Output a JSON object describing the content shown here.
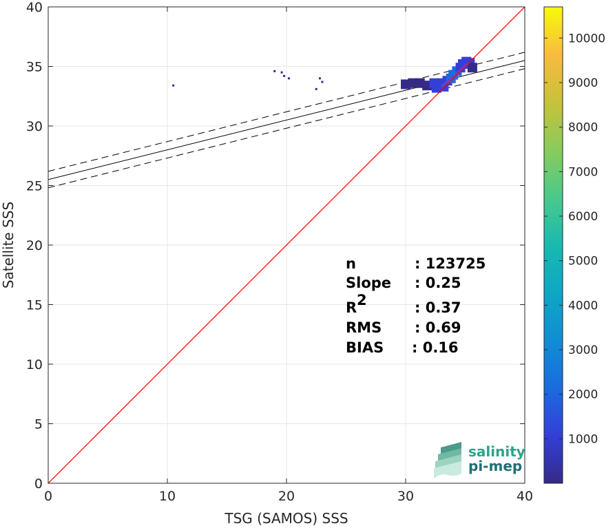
{
  "chart_data": {
    "type": "heatmap",
    "title": "",
    "xlabel": "TSG (SAMOS) SSS",
    "ylabel": "Satellite SSS",
    "xlim": [
      0,
      40
    ],
    "ylim": [
      0,
      40
    ],
    "xticks": [
      "0",
      "10",
      "20",
      "30",
      "40"
    ],
    "yticks": [
      "0",
      "5",
      "10",
      "15",
      "20",
      "25",
      "30",
      "35",
      "40"
    ],
    "grid": true,
    "colorbar": {
      "colormap": "parula",
      "range": [
        1,
        10700
      ],
      "ticks": [
        "1000",
        "2000",
        "3000",
        "4000",
        "5000",
        "6000",
        "7000",
        "8000",
        "9000",
        "10000"
      ]
    },
    "identity_line": {
      "color": "#ff0000",
      "x": [
        0,
        40
      ],
      "y": [
        0,
        40
      ]
    },
    "regression_line": {
      "intercept": 25.5,
      "slope": 0.25,
      "color": "#000000"
    },
    "confidence_band": {
      "offset": 0.69,
      "style": "dashed"
    },
    "density_cells": [
      {
        "x": 10.5,
        "y": 33.4,
        "count": 30
      },
      {
        "x": 19.0,
        "y": 34.6,
        "count": 10
      },
      {
        "x": 19.6,
        "y": 34.5,
        "count": 10
      },
      {
        "x": 19.8,
        "y": 34.2,
        "count": 10
      },
      {
        "x": 20.2,
        "y": 34.0,
        "count": 10
      },
      {
        "x": 22.5,
        "y": 33.1,
        "count": 10
      },
      {
        "x": 22.8,
        "y": 34.0,
        "count": 10
      },
      {
        "x": 23.0,
        "y": 33.7,
        "count": 10
      },
      {
        "x": 30.0,
        "y": 33.5,
        "count": 200
      },
      {
        "x": 30.6,
        "y": 33.6,
        "count": 250
      },
      {
        "x": 31.2,
        "y": 33.6,
        "count": 300
      },
      {
        "x": 31.8,
        "y": 33.4,
        "count": 400
      },
      {
        "x": 32.4,
        "y": 33.6,
        "count": 600
      },
      {
        "x": 32.6,
        "y": 33.2,
        "count": 800
      },
      {
        "x": 33.0,
        "y": 33.6,
        "count": 1200
      },
      {
        "x": 33.2,
        "y": 33.3,
        "count": 1400
      },
      {
        "x": 33.5,
        "y": 33.8,
        "count": 1500
      },
      {
        "x": 33.8,
        "y": 34.0,
        "count": 1700
      },
      {
        "x": 34.0,
        "y": 34.3,
        "count": 1800
      },
      {
        "x": 34.3,
        "y": 34.6,
        "count": 1900
      },
      {
        "x": 34.6,
        "y": 34.9,
        "count": 1600
      },
      {
        "x": 34.8,
        "y": 35.2,
        "count": 1300
      },
      {
        "x": 35.1,
        "y": 35.4,
        "count": 1000
      },
      {
        "x": 35.4,
        "y": 35.3,
        "count": 700
      },
      {
        "x": 35.6,
        "y": 34.9,
        "count": 500
      }
    ],
    "stats": [
      {
        "label": "n",
        "value": ": 123725"
      },
      {
        "label": "Slope",
        "value": ": 0.25"
      },
      {
        "label": "R",
        "sup": "2",
        "value": ": 0.37"
      },
      {
        "label": "RMS",
        "value": ": 0.69"
      },
      {
        "label": "BIAS",
        "value": ": 0.16"
      }
    ]
  },
  "logo": {
    "line1": "salinity",
    "line2": "pi-mep"
  }
}
